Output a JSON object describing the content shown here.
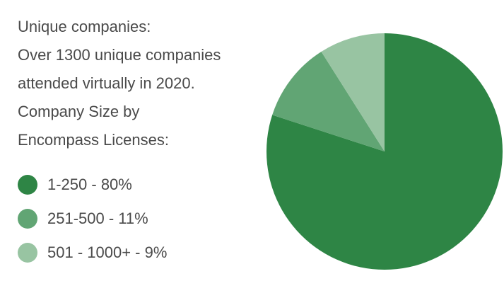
{
  "text": {
    "lines": [
      "Unique companies:",
      "Over 1300 unique companies",
      "attended virtually in 2020.",
      "Company Size by",
      "Encompass Licenses:"
    ]
  },
  "legend": {
    "items": [
      {
        "label": "1-250 - 80%",
        "color": "#2e8545"
      },
      {
        "label": "251-500 - 11%",
        "color": "#61a574"
      },
      {
        "label": "501 - 1000+ - 9%",
        "color": "#98c4a2"
      }
    ]
  },
  "chart_data": {
    "type": "pie",
    "title": "",
    "slices": [
      {
        "label": "1-250",
        "value": 80,
        "color": "#2e8545"
      },
      {
        "label": "251-500",
        "value": 11,
        "color": "#61a574"
      },
      {
        "label": "501 - 1000+",
        "value": 9,
        "color": "#98c4a2"
      }
    ],
    "start_angle_deg": 0,
    "direction": "clockwise",
    "legend_position": "left"
  }
}
